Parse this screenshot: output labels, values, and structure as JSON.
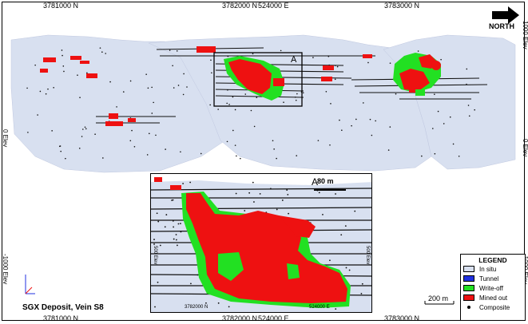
{
  "map": {
    "top_northings": [
      "3781000 N",
      "3782000 N",
      "524000 E",
      "3783000 N"
    ],
    "bottom_northings": [
      "3781000 N",
      "3782000 N",
      "524000 E",
      "3783000 N"
    ],
    "left_elev_labels": [
      "0 Elev",
      "-1000 Elev"
    ],
    "right_elev_labels": [
      "1000 Elev",
      "0 Elev",
      "-1000 Elev"
    ],
    "north_label": "NORTH",
    "box_label": "A",
    "title": "SGX Deposit, Vein S8",
    "scale_label": "200 m"
  },
  "inset": {
    "label": "A",
    "scale_label": "80 m",
    "axis_bottom": [
      "3782000 N",
      "524000 E"
    ],
    "axis_left": "500 Elev",
    "axis_right": "500 Elev"
  },
  "legend": {
    "title": "LEGEND",
    "items": [
      {
        "label": "In situ",
        "color": "#d8e0f0"
      },
      {
        "label": "Tunnel",
        "color": "#2030e0"
      },
      {
        "label": "Write-off",
        "color": "#22e022"
      },
      {
        "label": "Mined out",
        "color": "#ee1111"
      },
      {
        "label": "Composite",
        "color": "#000000"
      }
    ]
  },
  "colors": {
    "in_situ": "#d8e0f0",
    "tunnel": "#2030e0",
    "write_off": "#22e022",
    "mined_out": "#ee1111"
  }
}
